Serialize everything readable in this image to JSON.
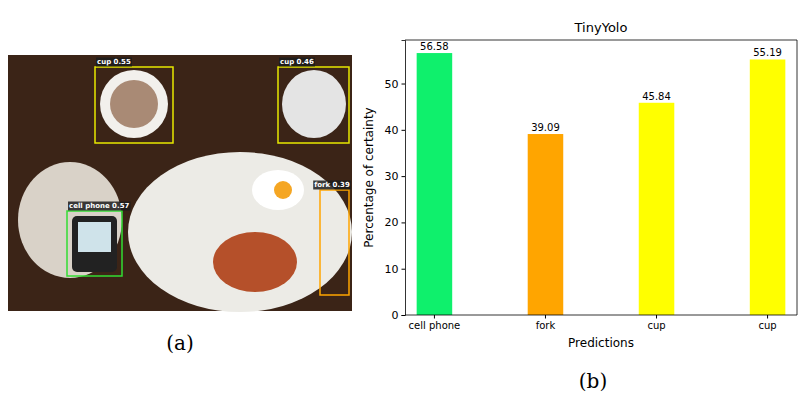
{
  "chart_data": {
    "type": "bar",
    "title": "TinyYolo",
    "x_label": "Predictions",
    "y_label": "Percentage of certainty",
    "categories": [
      "cell phone",
      "fork",
      "cup",
      "cup"
    ],
    "values": [
      56.58,
      39.09,
      45.84,
      55.19
    ],
    "colors": [
      "#0ff06c",
      "#ffa500",
      "#ffff00",
      "#ffff00"
    ],
    "ylim": [
      0,
      59.4
    ],
    "yticks": [
      0,
      10,
      20,
      30,
      40,
      50
    ],
    "grid": false,
    "data_labels": true
  },
  "panel_labels": [
    "(a)",
    "(b)"
  ],
  "detections": [
    {
      "label": "cup 0.55",
      "color": "#e8e800"
    },
    {
      "label": "cup 0.46",
      "color": "#e8e800"
    },
    {
      "label": "cell phone 0.57",
      "color": "#33dd33"
    },
    {
      "label": "fork 0.39",
      "color": "#ffa500"
    }
  ]
}
